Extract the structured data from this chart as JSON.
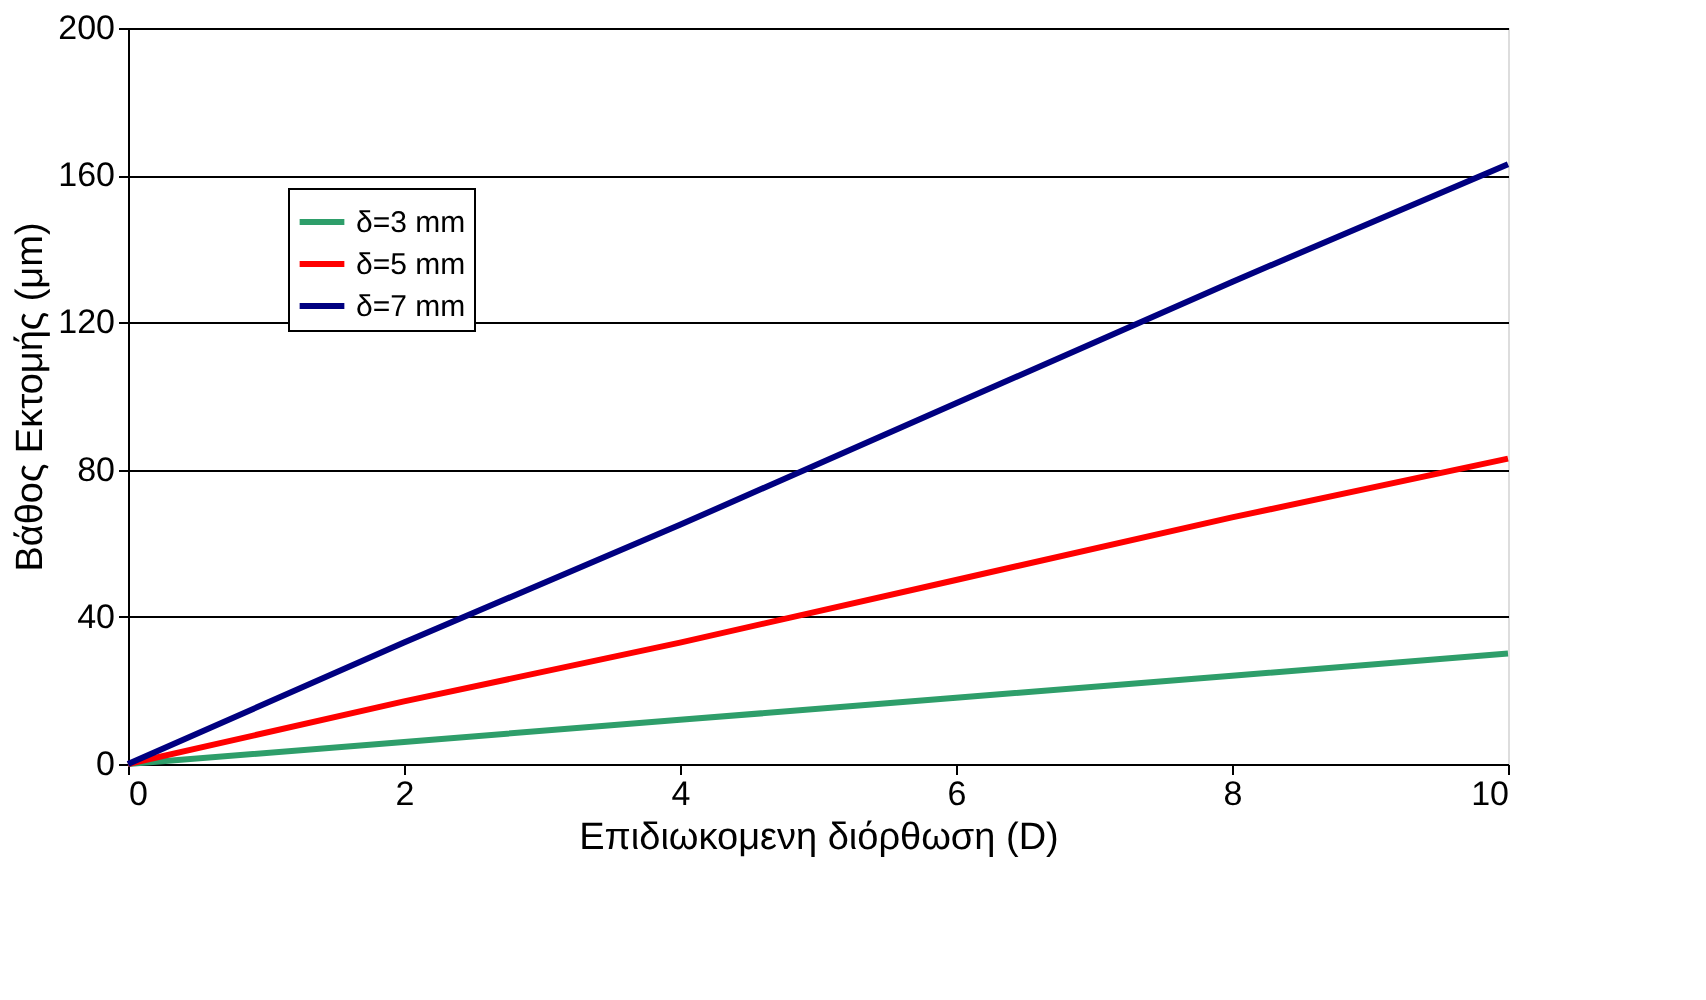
{
  "chart_data": {
    "type": "line",
    "xlabel": "Επιδιωκομενη διόρθωση (D)",
    "ylabel": "Βάθος Εκτομής (μm)",
    "x": [
      0,
      2,
      4,
      6,
      8,
      10
    ],
    "series": [
      {
        "name": "δ=3 mm",
        "color": "#2e9e6a",
        "values": [
          0,
          6,
          12,
          18,
          24,
          30
        ]
      },
      {
        "name": "δ=5 mm",
        "color": "#ff0000",
        "values": [
          0,
          17,
          33,
          50,
          67,
          83
        ]
      },
      {
        "name": "δ=7 mm",
        "color": "#000080",
        "values": [
          0,
          33,
          65,
          98,
          131,
          163
        ]
      }
    ],
    "xlim": [
      0,
      10
    ],
    "xticks": [
      0,
      2,
      4,
      6,
      8,
      10
    ],
    "ylim": [
      0,
      200
    ],
    "yticks": [
      0,
      40,
      80,
      120,
      160,
      200
    ],
    "grid": "y",
    "legend": "top left",
    "marker": "none",
    "line_style": "solid"
  }
}
